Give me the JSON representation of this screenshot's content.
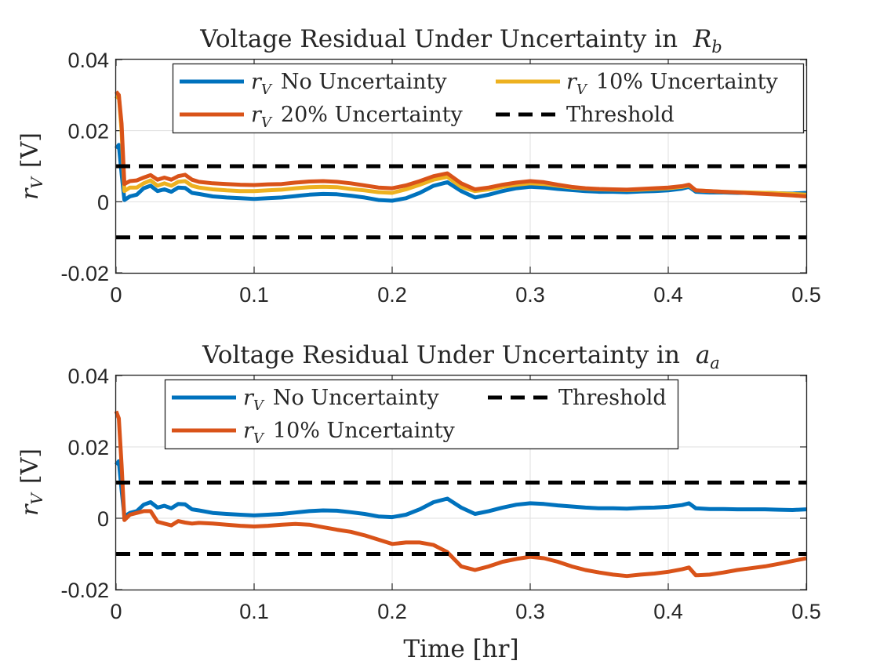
{
  "chart_data": [
    {
      "type": "line",
      "title": "Voltage Residual Under Uncertainty in",
      "title_math": {
        "base": "R",
        "sub": "b"
      },
      "xlabel": "",
      "ylabel": {
        "base": "r",
        "sub": "V",
        "unit": "[V]"
      },
      "xlim": [
        0,
        0.5
      ],
      "ylim": [
        -0.02,
        0.04
      ],
      "xticks": [
        0,
        0.1,
        0.2,
        0.3,
        0.4,
        0.5
      ],
      "xtick_labels": [
        "0",
        "0.1",
        "0.2",
        "0.3",
        "0.4",
        "0.5"
      ],
      "yticks": [
        -0.02,
        0,
        0.02,
        0.04
      ],
      "ytick_labels": [
        "-0.02",
        "0",
        "0.02",
        "0.04"
      ],
      "grid": true,
      "legend": "top",
      "series": [
        {
          "name": "No Uncertainty",
          "label": {
            "base": "r",
            "sub": "V"
          },
          "color": "#0072BD",
          "style": "solid",
          "x": [
            0,
            0.002,
            0.004,
            0.006,
            0.01,
            0.015,
            0.02,
            0.025,
            0.03,
            0.035,
            0.04,
            0.045,
            0.05,
            0.055,
            0.06,
            0.07,
            0.08,
            0.09,
            0.1,
            0.11,
            0.12,
            0.13,
            0.14,
            0.15,
            0.16,
            0.17,
            0.18,
            0.19,
            0.2,
            0.21,
            0.22,
            0.23,
            0.24,
            0.25,
            0.26,
            0.27,
            0.28,
            0.29,
            0.3,
            0.31,
            0.32,
            0.33,
            0.34,
            0.35,
            0.36,
            0.37,
            0.38,
            0.39,
            0.4,
            0.41,
            0.415,
            0.42,
            0.43,
            0.44,
            0.45,
            0.46,
            0.47,
            0.48,
            0.49,
            0.5
          ],
          "y": [
            0.015,
            0.016,
            0.008,
            0.0005,
            0.0015,
            0.002,
            0.0038,
            0.0045,
            0.003,
            0.0035,
            0.0028,
            0.004,
            0.0039,
            0.0025,
            0.0022,
            0.0015,
            0.0012,
            0.001,
            0.0008,
            0.001,
            0.0012,
            0.0016,
            0.002,
            0.0022,
            0.0021,
            0.0017,
            0.0012,
            0.0005,
            0.0003,
            0.001,
            0.0025,
            0.0045,
            0.0055,
            0.003,
            0.0012,
            0.002,
            0.003,
            0.0038,
            0.0042,
            0.004,
            0.0036,
            0.0033,
            0.003,
            0.0028,
            0.0028,
            0.0027,
            0.0029,
            0.003,
            0.0032,
            0.0037,
            0.0042,
            0.0028,
            0.0026,
            0.0026,
            0.0025,
            0.0025,
            0.0025,
            0.0024,
            0.0023,
            0.0025
          ]
        },
        {
          "name": "10% Uncertainty",
          "label": {
            "base": "r",
            "sub": "V"
          },
          "color": "#EDB120",
          "style": "solid",
          "x": [
            0,
            0.002,
            0.004,
            0.006,
            0.01,
            0.015,
            0.02,
            0.025,
            0.03,
            0.035,
            0.04,
            0.045,
            0.05,
            0.055,
            0.06,
            0.07,
            0.08,
            0.09,
            0.1,
            0.11,
            0.12,
            0.13,
            0.14,
            0.15,
            0.16,
            0.17,
            0.18,
            0.19,
            0.2,
            0.21,
            0.22,
            0.23,
            0.24,
            0.25,
            0.26,
            0.27,
            0.28,
            0.29,
            0.3,
            0.31,
            0.32,
            0.33,
            0.34,
            0.35,
            0.36,
            0.37,
            0.38,
            0.39,
            0.4,
            0.41,
            0.415,
            0.42,
            0.43,
            0.44,
            0.45,
            0.46,
            0.47,
            0.48,
            0.49,
            0.5
          ],
          "y": [
            0.029,
            0.03,
            0.02,
            0.003,
            0.004,
            0.004,
            0.0052,
            0.006,
            0.0045,
            0.0052,
            0.0045,
            0.0056,
            0.0058,
            0.0045,
            0.004,
            0.0035,
            0.0032,
            0.003,
            0.003,
            0.0032,
            0.0034,
            0.0038,
            0.0041,
            0.0042,
            0.0041,
            0.0036,
            0.0032,
            0.0027,
            0.0025,
            0.0035,
            0.0048,
            0.0062,
            0.007,
            0.0042,
            0.003,
            0.0035,
            0.0042,
            0.0048,
            0.0052,
            0.005,
            0.0045,
            0.004,
            0.0037,
            0.0035,
            0.0034,
            0.0033,
            0.0034,
            0.0036,
            0.0038,
            0.0042,
            0.0046,
            0.0032,
            0.003,
            0.0028,
            0.0027,
            0.0026,
            0.0025,
            0.0024,
            0.0022,
            0.002
          ]
        },
        {
          "name": "20% Uncertainty",
          "label": {
            "base": "r",
            "sub": "V"
          },
          "color": "#D95319",
          "style": "solid",
          "x": [
            0,
            0.002,
            0.004,
            0.006,
            0.01,
            0.015,
            0.02,
            0.025,
            0.03,
            0.035,
            0.04,
            0.045,
            0.05,
            0.055,
            0.06,
            0.07,
            0.08,
            0.09,
            0.1,
            0.11,
            0.12,
            0.13,
            0.14,
            0.15,
            0.16,
            0.17,
            0.18,
            0.19,
            0.2,
            0.21,
            0.22,
            0.23,
            0.24,
            0.25,
            0.26,
            0.27,
            0.28,
            0.29,
            0.3,
            0.31,
            0.32,
            0.33,
            0.34,
            0.35,
            0.36,
            0.37,
            0.38,
            0.39,
            0.4,
            0.41,
            0.415,
            0.42,
            0.43,
            0.44,
            0.45,
            0.46,
            0.47,
            0.48,
            0.49,
            0.5
          ],
          "y": [
            0.031,
            0.03,
            0.022,
            0.005,
            0.0058,
            0.006,
            0.0068,
            0.0075,
            0.0062,
            0.0068,
            0.0062,
            0.0072,
            0.0076,
            0.0062,
            0.0056,
            0.0052,
            0.005,
            0.0048,
            0.0047,
            0.0049,
            0.005,
            0.0054,
            0.0057,
            0.0058,
            0.0056,
            0.0052,
            0.0046,
            0.004,
            0.0038,
            0.0046,
            0.0058,
            0.0072,
            0.008,
            0.0052,
            0.0035,
            0.004,
            0.0048,
            0.0054,
            0.0058,
            0.0055,
            0.0048,
            0.0042,
            0.0038,
            0.0036,
            0.0035,
            0.0034,
            0.0036,
            0.0038,
            0.004,
            0.0044,
            0.0048,
            0.0032,
            0.003,
            0.0028,
            0.0026,
            0.0024,
            0.0022,
            0.002,
            0.0018,
            0.0015
          ]
        },
        {
          "name": "Threshold",
          "color": "#000000",
          "style": "dashed",
          "x": [
            0,
            0.5
          ],
          "y": [
            0.01,
            0.01
          ]
        },
        {
          "name": "Threshold (lower)",
          "color": "#000000",
          "style": "dashed",
          "x": [
            0,
            0.5
          ],
          "y": [
            -0.01,
            -0.01
          ]
        }
      ],
      "legend_entries": [
        {
          "series": 0,
          "math": "r",
          "math_sub": "V",
          "text": "No Uncertainty"
        },
        {
          "series": 1,
          "math": "r",
          "math_sub": "V",
          "text": "10% Uncertainty"
        },
        {
          "series": 2,
          "math": "r",
          "math_sub": "V",
          "text": "20% Uncertainty"
        },
        {
          "series": 3,
          "text": "Threshold"
        }
      ]
    },
    {
      "type": "line",
      "title": "Voltage Residual Under Uncertainty in",
      "title_math": {
        "base": "a",
        "sub": "a"
      },
      "xlabel": "Time [hr]",
      "ylabel": {
        "base": "r",
        "sub": "V",
        "unit": "[V]"
      },
      "xlim": [
        0,
        0.5
      ],
      "ylim": [
        -0.02,
        0.04
      ],
      "xticks": [
        0,
        0.1,
        0.2,
        0.3,
        0.4,
        0.5
      ],
      "xtick_labels": [
        "0",
        "0.1",
        "0.2",
        "0.3",
        "0.4",
        "0.5"
      ],
      "yticks": [
        -0.02,
        0,
        0.02,
        0.04
      ],
      "ytick_labels": [
        "-0.02",
        "0",
        "0.02",
        "0.04"
      ],
      "grid": true,
      "legend": "top",
      "series": [
        {
          "name": "No Uncertainty",
          "label": {
            "base": "r",
            "sub": "V"
          },
          "color": "#0072BD",
          "style": "solid",
          "x": [
            0,
            0.002,
            0.004,
            0.006,
            0.01,
            0.015,
            0.02,
            0.025,
            0.03,
            0.035,
            0.04,
            0.045,
            0.05,
            0.055,
            0.06,
            0.07,
            0.08,
            0.09,
            0.1,
            0.11,
            0.12,
            0.13,
            0.14,
            0.15,
            0.16,
            0.17,
            0.18,
            0.19,
            0.2,
            0.21,
            0.22,
            0.23,
            0.24,
            0.25,
            0.26,
            0.27,
            0.28,
            0.29,
            0.3,
            0.31,
            0.32,
            0.33,
            0.34,
            0.35,
            0.36,
            0.37,
            0.38,
            0.39,
            0.4,
            0.41,
            0.415,
            0.42,
            0.43,
            0.44,
            0.45,
            0.46,
            0.47,
            0.48,
            0.49,
            0.5
          ],
          "y": [
            0.015,
            0.016,
            0.008,
            0.0005,
            0.0015,
            0.002,
            0.0038,
            0.0045,
            0.003,
            0.0035,
            0.0028,
            0.004,
            0.0039,
            0.0025,
            0.0022,
            0.0015,
            0.0012,
            0.001,
            0.0008,
            0.001,
            0.0012,
            0.0016,
            0.002,
            0.0022,
            0.0021,
            0.0017,
            0.0012,
            0.0005,
            0.0003,
            0.001,
            0.0025,
            0.0045,
            0.0055,
            0.003,
            0.0012,
            0.002,
            0.003,
            0.0038,
            0.0042,
            0.004,
            0.0036,
            0.0033,
            0.003,
            0.0028,
            0.0028,
            0.0027,
            0.0029,
            0.003,
            0.0032,
            0.0037,
            0.0042,
            0.0028,
            0.0026,
            0.0026,
            0.0025,
            0.0025,
            0.0025,
            0.0024,
            0.0023,
            0.0025
          ]
        },
        {
          "name": "10% Uncertainty",
          "label": {
            "base": "r",
            "sub": "V"
          },
          "color": "#D95319",
          "style": "solid",
          "x": [
            0,
            0.002,
            0.004,
            0.006,
            0.01,
            0.015,
            0.02,
            0.025,
            0.03,
            0.035,
            0.04,
            0.045,
            0.05,
            0.055,
            0.06,
            0.07,
            0.08,
            0.09,
            0.1,
            0.11,
            0.12,
            0.13,
            0.14,
            0.15,
            0.16,
            0.17,
            0.18,
            0.19,
            0.2,
            0.21,
            0.22,
            0.23,
            0.24,
            0.25,
            0.26,
            0.27,
            0.28,
            0.29,
            0.3,
            0.31,
            0.32,
            0.33,
            0.34,
            0.35,
            0.36,
            0.37,
            0.38,
            0.39,
            0.4,
            0.41,
            0.415,
            0.42,
            0.43,
            0.44,
            0.45,
            0.46,
            0.47,
            0.48,
            0.49,
            0.5
          ],
          "y": [
            0.03,
            0.028,
            0.015,
            -0.0005,
            0.001,
            0.0015,
            0.002,
            0.002,
            -0.001,
            -0.0015,
            -0.002,
            -0.0008,
            -0.0012,
            -0.0015,
            -0.0013,
            -0.0015,
            -0.0018,
            -0.0021,
            -0.0023,
            -0.0021,
            -0.0018,
            -0.0016,
            -0.0018,
            -0.0025,
            -0.0032,
            -0.0038,
            -0.0048,
            -0.006,
            -0.0072,
            -0.0068,
            -0.0068,
            -0.0075,
            -0.0095,
            -0.0135,
            -0.0145,
            -0.0135,
            -0.0122,
            -0.0114,
            -0.0108,
            -0.0112,
            -0.0122,
            -0.0135,
            -0.0145,
            -0.0152,
            -0.0158,
            -0.0162,
            -0.0158,
            -0.0155,
            -0.015,
            -0.0143,
            -0.0138,
            -0.016,
            -0.0158,
            -0.0152,
            -0.0145,
            -0.014,
            -0.0135,
            -0.0128,
            -0.012,
            -0.0112
          ]
        },
        {
          "name": "Threshold",
          "color": "#000000",
          "style": "dashed",
          "x": [
            0,
            0.5
          ],
          "y": [
            0.01,
            0.01
          ]
        },
        {
          "name": "Threshold (lower)",
          "color": "#000000",
          "style": "dashed",
          "x": [
            0,
            0.5
          ],
          "y": [
            -0.01,
            -0.01
          ]
        }
      ],
      "legend_entries": [
        {
          "series": 0,
          "math": "r",
          "math_sub": "V",
          "text": "No Uncertainty"
        },
        {
          "series": 2,
          "text": "Threshold"
        },
        {
          "series": 1,
          "math": "r",
          "math_sub": "V",
          "text": "10% Uncertainty"
        }
      ]
    }
  ]
}
